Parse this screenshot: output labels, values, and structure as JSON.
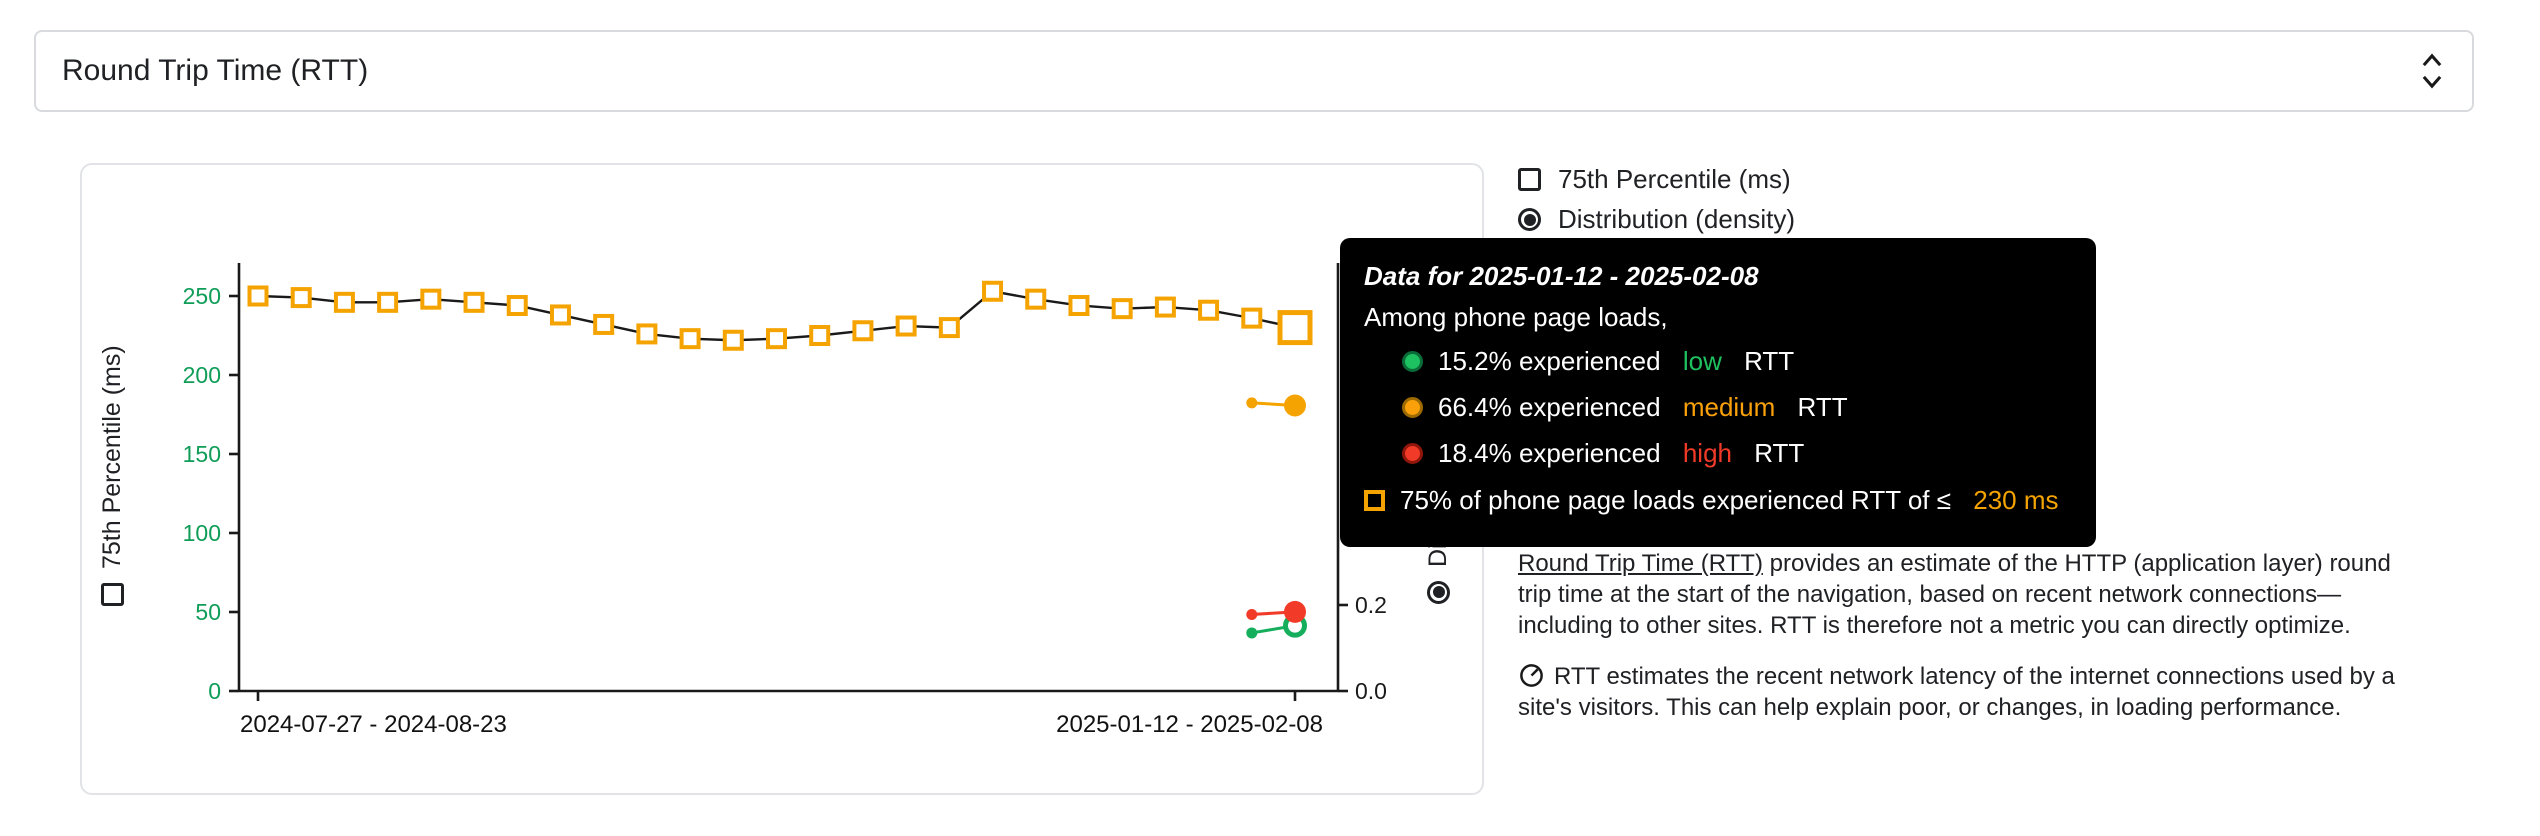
{
  "selector": {
    "value": "Round Trip Time (RTT)"
  },
  "controls": {
    "percentile_label": "75th Percentile (ms)",
    "distribution_label": "Distribution (density)"
  },
  "chart_data": {
    "type": "line",
    "x_tick_labels": [
      "2024-07-27 - 2024-08-23",
      "2025-01-12 - 2025-02-08"
    ],
    "left_axis": {
      "label": "75th Percentile (ms)",
      "ticks": [
        "0",
        "50",
        "100",
        "150",
        "200",
        "250"
      ],
      "max": 250,
      "tick_color": "#0F9D58"
    },
    "right_axis": {
      "label": "Distribution (density)",
      "ticks": [
        "0.0",
        "0.2"
      ],
      "max_shown": 0.2,
      "tick_color": "#1a1a1a"
    },
    "percentile_series": {
      "name": "75th Percentile (ms)",
      "marker": "hollow-square",
      "color": "#F5A300",
      "line_color": "#1a1a1a",
      "first_period": "2024-07-27 - 2024-08-23",
      "last_period": "2025-01-12 - 2025-02-08",
      "last_value_ms": 230,
      "values": [
        250,
        249,
        246,
        246,
        248,
        246,
        244,
        238,
        232,
        226,
        223,
        222,
        223,
        225,
        228,
        231,
        230,
        253,
        248,
        244,
        242,
        243,
        241,
        236,
        230
      ]
    },
    "density_series": [
      {
        "name": "low",
        "color": "#14AE5C",
        "marker_last": "ring",
        "last_two_values": [
          0.135,
          0.152
        ]
      },
      {
        "name": "medium",
        "color": "#F5A300",
        "marker_last": "filled",
        "last_two_values": [
          0.67,
          0.664
        ]
      },
      {
        "name": "high",
        "color": "#F13A27",
        "marker_last": "filled",
        "last_two_values": [
          0.178,
          0.184
        ]
      }
    ]
  },
  "tooltip": {
    "title": "Data for 2025-01-12 - 2025-02-08",
    "subtitle": "Among phone page loads,",
    "rows": [
      {
        "level": "low",
        "text1": "15.2% experienced ",
        "text2": " RTT",
        "color": "#1EC15F",
        "ring": "#0B6B38"
      },
      {
        "level": "medium",
        "text1": "66.4% experienced ",
        "text2": " RTT",
        "color": "#F9A00A",
        "ring": "#9C6A00"
      },
      {
        "level": "high",
        "text1": "18.4% experienced ",
        "text2": " RTT",
        "color": "#F13A27",
        "ring": "#8F160B"
      }
    ],
    "percentile_row": {
      "text1": "75% of phone page loads experienced RTT of ≤ ",
      "value": "230 ms",
      "color": "#F5A300"
    }
  },
  "description": {
    "link_text": "Round Trip Time (RTT)",
    "p1_rest": " provides an estimate of the HTTP (application layer) round trip time at the start of the navigation, based on recent network connections—including to other sites. RTT is therefore not a metric you can directly optimize.",
    "p2": "RTT estimates the recent network latency of the internet connections used by a site's visitors. This can help explain poor, or changes, in loading performance."
  }
}
